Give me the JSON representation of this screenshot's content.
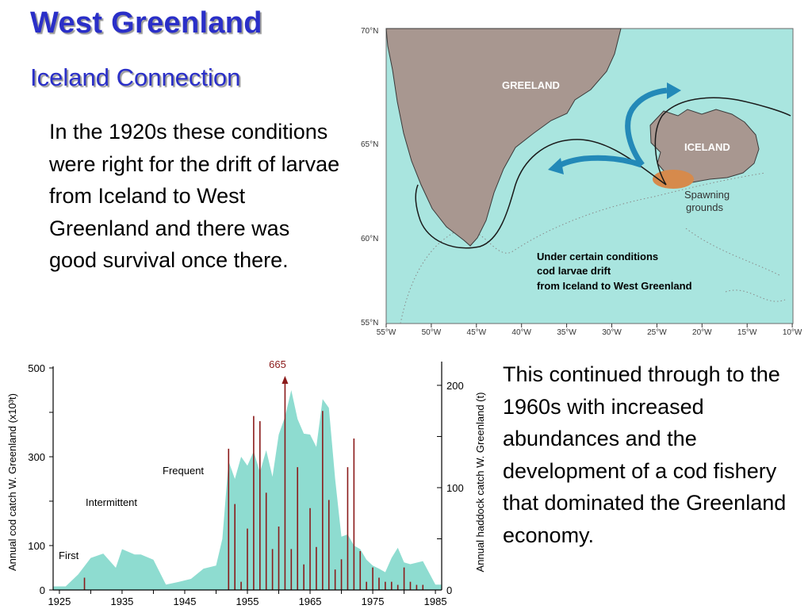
{
  "header": {
    "title": "West Greenland",
    "subtitle": "Iceland Connection"
  },
  "left_text": "In the 1920s these conditions were right for the drift of larvae from Iceland to West Greenland and there was good survival once there.",
  "right_text": "This continued through to the 1960s with increased abundances and the development of a cod fishery that dominated the Greenland economy.",
  "map": {
    "labels": {
      "greenland": "GREELAND",
      "iceland": "ICELAND",
      "spawning_line1": "Spawning",
      "spawning_line2": "grounds",
      "caption_line1": "Under certain conditions",
      "caption_line2": "cod larvae drift",
      "caption_line3": "from Iceland to West Greenland"
    },
    "lat_labels": [
      "70°N",
      "65°N",
      "60°N",
      "55°N"
    ],
    "lon_labels": [
      "55°W",
      "50°W",
      "45°W",
      "40°W",
      "35°W",
      "30°W",
      "25°W",
      "20°W",
      "15°W",
      "10°W"
    ],
    "colors": {
      "sea": "#a9e5df",
      "land": "#a89790",
      "spawn": "#d68a4c",
      "arrow": "#2389b8"
    }
  },
  "chart_data": {
    "type": "area",
    "left_axis_label": "Annual cod catch W. Greenland (x10³t)",
    "right_axis_label": "Annual haddock catch W. Greenland (t)",
    "x_ticks": [
      "1925",
      "1935",
      "1945",
      "1955",
      "1965",
      "1975",
      "1985"
    ],
    "left_ticks": [
      "500",
      "300",
      "100",
      "0"
    ],
    "right_ticks": [
      "200",
      "100",
      "0"
    ],
    "ylim_left": [
      0,
      500
    ],
    "ylim_right": [
      0,
      217
    ],
    "xlim": [
      1924,
      1986
    ],
    "annotations": [
      "First",
      "Intermittent",
      "Frequent"
    ],
    "peak_label": "665",
    "cod_catch": {
      "x": [
        1924,
        1926,
        1928,
        1930,
        1932,
        1934,
        1935,
        1937,
        1938,
        1940,
        1942,
        1944,
        1946,
        1948,
        1950,
        1951,
        1952,
        1953,
        1954,
        1955,
        1956,
        1957,
        1958,
        1959,
        1960,
        1961,
        1962,
        1963,
        1964,
        1965,
        1966,
        1967,
        1968,
        1969,
        1970,
        1971,
        1972,
        1973,
        1974,
        1975,
        1976,
        1977,
        1978,
        1979,
        1980,
        1981,
        1983,
        1985,
        1986
      ],
      "y": [
        8,
        8,
        35,
        72,
        82,
        50,
        92,
        80,
        80,
        68,
        12,
        18,
        25,
        48,
        55,
        115,
        290,
        250,
        300,
        280,
        312,
        265,
        315,
        255,
        350,
        390,
        450,
        385,
        352,
        350,
        322,
        430,
        410,
        250,
        120,
        125,
        100,
        92,
        68,
        55,
        48,
        40,
        72,
        95,
        62,
        58,
        65,
        12,
        12
      ]
    },
    "haddock_catch": {
      "x": [
        1929,
        1952,
        1953,
        1954,
        1955,
        1956,
        1957,
        1958,
        1959,
        1960,
        1961,
        1962,
        1963,
        1964,
        1965,
        1966,
        1967,
        1968,
        1969,
        1970,
        1971,
        1972,
        1973,
        1974,
        1975,
        1976,
        1977,
        1978,
        1979,
        1980,
        1981,
        1982,
        1983
      ],
      "y": [
        12,
        138,
        84,
        8,
        60,
        170,
        165,
        95,
        40,
        62,
        665,
        40,
        120,
        25,
        80,
        42,
        175,
        88,
        20,
        30,
        120,
        148,
        38,
        8,
        22,
        12,
        8,
        8,
        5,
        22,
        8,
        5,
        5
      ]
    }
  }
}
